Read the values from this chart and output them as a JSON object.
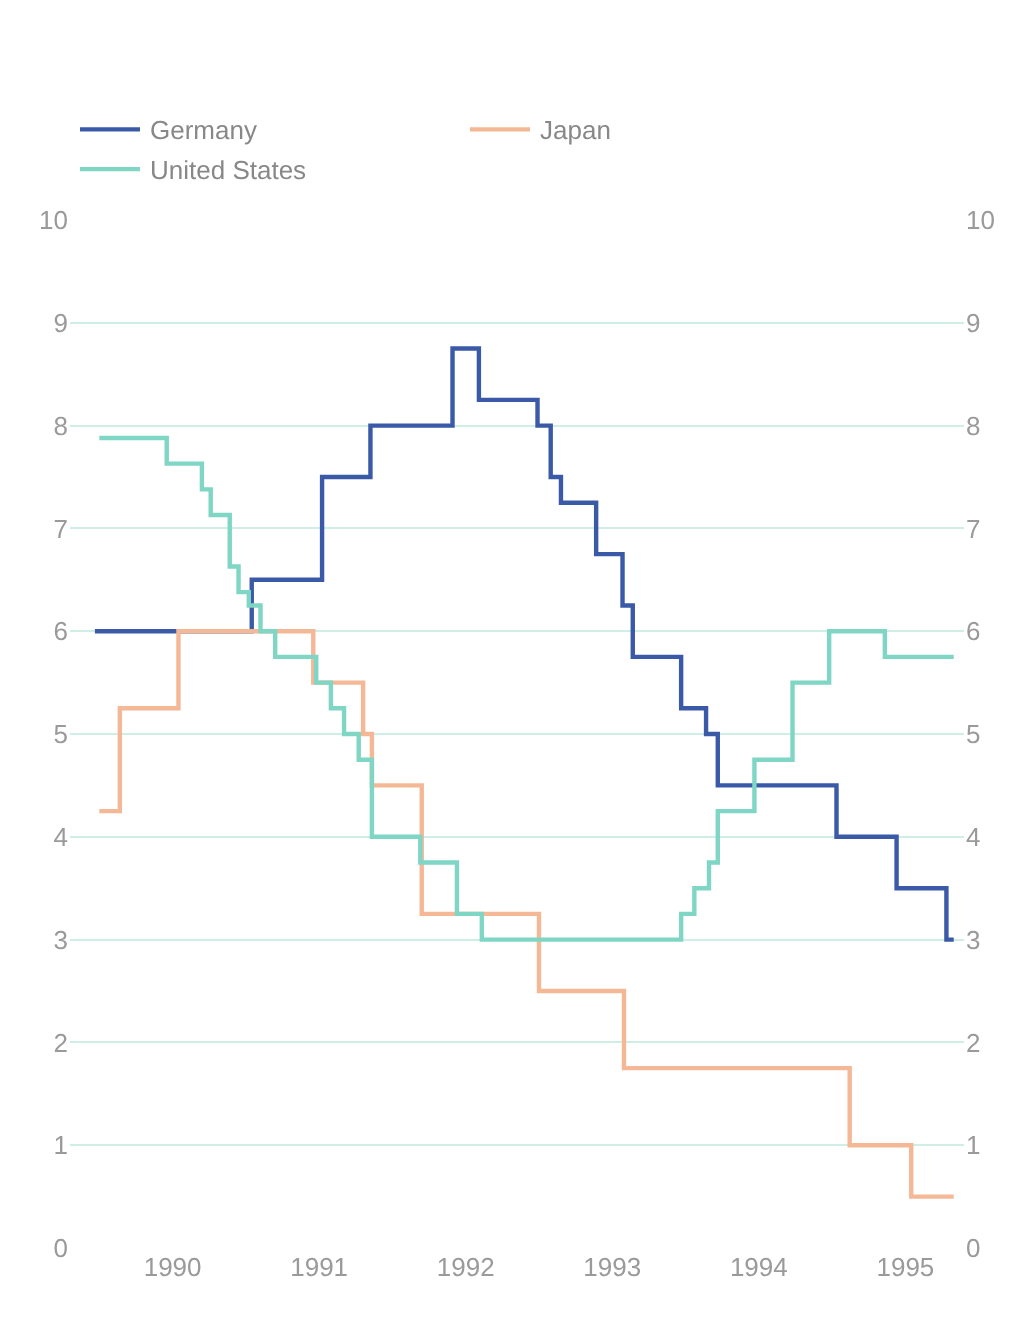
{
  "chart_data": {
    "type": "step",
    "series": [
      {
        "name": "Germany",
        "color": "#3a5aa8",
        "x": [
          1989.47,
          1990.54,
          1991.02,
          1991.35,
          1991.91,
          1992.09,
          1992.49,
          1992.58,
          1992.65,
          1992.89,
          1993.07,
          1993.14,
          1993.47,
          1993.64,
          1993.72,
          1994.53,
          1994.94,
          1995.28,
          1995.33
        ],
        "values": [
          6.0,
          6.5,
          7.5,
          8.0,
          8.75,
          8.25,
          8.0,
          7.5,
          7.25,
          6.75,
          6.25,
          5.75,
          5.25,
          5.0,
          4.5,
          4.0,
          3.5,
          3.0,
          3.0
        ]
      },
      {
        "name": "Japan",
        "color": "#f4b896",
        "x": [
          1989.5,
          1989.64,
          1990.04,
          1990.96,
          1991.3,
          1991.36,
          1991.7,
          1992.5,
          1993.08,
          1994.62,
          1995.04,
          1995.33
        ],
        "values": [
          4.25,
          5.25,
          6.0,
          5.5,
          5.0,
          4.5,
          3.25,
          2.5,
          1.75,
          1.0,
          0.5,
          0.5
        ]
      },
      {
        "name": "United States",
        "color": "#7fd6c4",
        "x": [
          1989.5,
          1989.96,
          1990.2,
          1990.26,
          1990.39,
          1990.45,
          1990.52,
          1990.6,
          1990.7,
          1990.98,
          1991.08,
          1991.17,
          1991.27,
          1991.36,
          1991.69,
          1991.94,
          1992.11,
          1993.47,
          1993.56,
          1993.66,
          1993.72,
          1993.97,
          1994.23,
          1994.48,
          1994.86,
          1995.33
        ],
        "values": [
          7.88,
          7.63,
          7.38,
          7.13,
          6.63,
          6.38,
          6.25,
          6.0,
          5.75,
          5.5,
          5.25,
          5.0,
          4.75,
          4.0,
          3.75,
          3.25,
          3.0,
          3.25,
          3.5,
          3.75,
          4.25,
          4.75,
          5.5,
          6.0,
          5.75,
          5.75
        ]
      }
    ],
    "xlim": [
      1989.3,
      1995.4
    ],
    "xticks": [
      1990,
      1991,
      1992,
      1993,
      1994,
      1995
    ],
    "ylim": [
      0,
      10
    ],
    "yticks": [
      0,
      1,
      2,
      3,
      4,
      5,
      6,
      7,
      8,
      9,
      10
    ],
    "y2lim": [
      0,
      10
    ],
    "y2ticks": [
      0,
      1,
      2,
      3,
      4,
      5,
      6,
      7,
      8,
      9,
      10
    ],
    "grid": "y",
    "legend": "top left",
    "line_style": "solid",
    "marker": "none"
  }
}
